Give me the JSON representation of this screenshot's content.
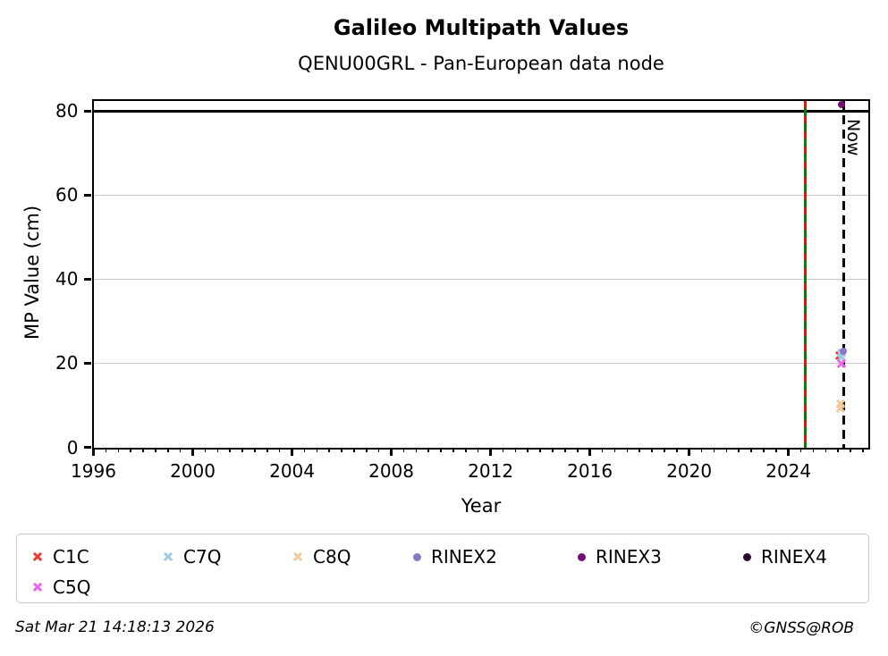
{
  "header": {
    "title": "Galileo Multipath Values",
    "subtitle": "QENU00GRL - Pan-European data node"
  },
  "chart_data": {
    "type": "scatter",
    "title": "Galileo Multipath Values",
    "subtitle": "QENU00GRL - Pan-European data node",
    "xlabel": "Year",
    "ylabel": "MP Value (cm)",
    "xlim": [
      1996,
      2027.2
    ],
    "ylim": [
      0,
      82.5
    ],
    "x_major_ticks": [
      1996,
      2000,
      2004,
      2008,
      2012,
      2016,
      2020,
      2024
    ],
    "x_minor_step": 0.5,
    "y_ticks": [
      0,
      20,
      40,
      60,
      80
    ],
    "y_gridlines": [
      20,
      40,
      60
    ],
    "grid": "horizontal-only",
    "threshold_line": {
      "y": 80,
      "color": "#000000"
    },
    "event_line": {
      "x": 2024.68,
      "style": "solid-green-with-red-dashes",
      "colors": [
        "#007f00",
        "#ee1100"
      ]
    },
    "now_line": {
      "x": 2026.23,
      "style": "dashed",
      "color": "#000000",
      "label": "Now"
    },
    "legend_position": "bottom",
    "series": [
      {
        "name": "C1C",
        "marker": "x",
        "color": "#ee3b32",
        "points": [
          {
            "x": 2026.05,
            "y": 21.9
          }
        ]
      },
      {
        "name": "C7Q",
        "marker": "x",
        "color": "#9ecbe8",
        "points": [
          {
            "x": 2026.15,
            "y": 22.4
          },
          {
            "x": 2026.15,
            "y": 21.3
          }
        ]
      },
      {
        "name": "C8Q",
        "marker": "x",
        "color": "#f4c89d",
        "points": [
          {
            "x": 2026.1,
            "y": 10.4
          },
          {
            "x": 2026.1,
            "y": 9.3
          }
        ]
      },
      {
        "name": "RINEX2",
        "marker": "dot",
        "color": "#8878c3",
        "points": [
          {
            "x": 2026.2,
            "y": 22.8
          }
        ]
      },
      {
        "name": "RINEX3",
        "marker": "dot",
        "color": "#730f70",
        "points": [
          {
            "x": 2026.15,
            "y": 81.5
          }
        ]
      },
      {
        "name": "RINEX4",
        "marker": "dot",
        "color": "#2b0a33",
        "points": []
      },
      {
        "name": "C5Q",
        "marker": "x",
        "color": "#ee64ee",
        "points": [
          {
            "x": 2026.15,
            "y": 19.8
          }
        ]
      }
    ]
  },
  "legend": {
    "items": [
      {
        "label": "C1C",
        "marker": "x",
        "color": "#ee3b32"
      },
      {
        "label": "C7Q",
        "marker": "x",
        "color": "#9ecbe8"
      },
      {
        "label": "C8Q",
        "marker": "x",
        "color": "#f4c89d"
      },
      {
        "label": "RINEX2",
        "marker": "dot",
        "color": "#8878c3"
      },
      {
        "label": "RINEX3",
        "marker": "dot",
        "color": "#730f70"
      },
      {
        "label": "RINEX4",
        "marker": "dot",
        "color": "#2b0a33"
      },
      {
        "label": "C5Q",
        "marker": "x",
        "color": "#ee64ee"
      }
    ]
  },
  "footer": {
    "timestamp": "Sat Mar 21 14:18:13 2026",
    "credit": "©GNSS@ROB"
  }
}
